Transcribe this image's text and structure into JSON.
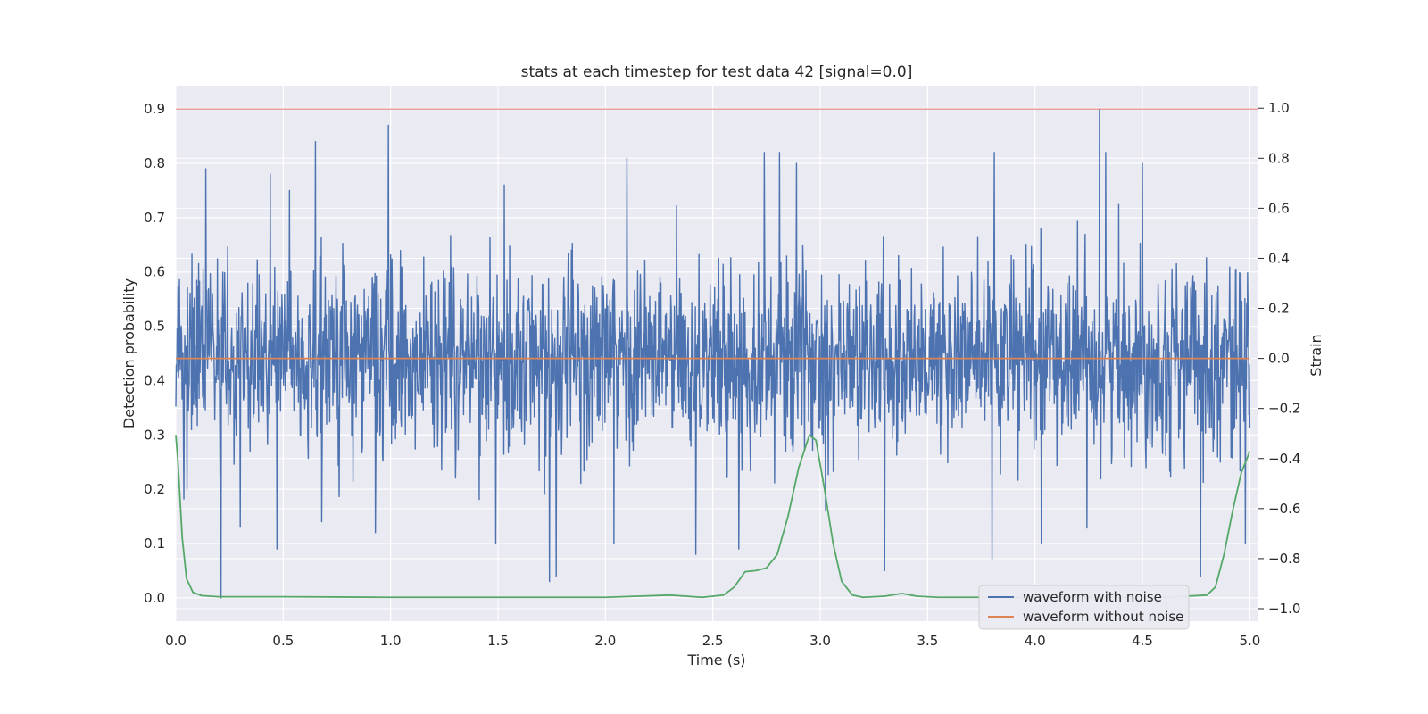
{
  "chart_data": {
    "type": "line",
    "title": "stats at each timestep for test data 42 [signal=0.0]",
    "xlabel": "Time (s)",
    "ylabel": "Detection probability",
    "y2label": "Strain",
    "xlim": [
      0.0,
      5.04
    ],
    "ylim": [
      -0.043,
      0.943
    ],
    "y2lim": [
      -1.05,
      1.09
    ],
    "xticks": [
      "0.0",
      "0.5",
      "1.0",
      "1.5",
      "2.0",
      "2.5",
      "3.0",
      "3.5",
      "4.0",
      "4.5",
      "5.0"
    ],
    "yticks": [
      "0.0",
      "0.1",
      "0.2",
      "0.3",
      "0.4",
      "0.5",
      "0.6",
      "0.7",
      "0.8",
      "0.9"
    ],
    "y2ticks": [
      "−1.0",
      "−0.8",
      "−0.6",
      "−0.4",
      "−0.2",
      "0.0",
      "0.2",
      "0.4",
      "0.6",
      "0.8",
      "1.0"
    ],
    "grid": true,
    "legend_position": "lower-right",
    "threshold": {
      "axis": "left",
      "value": 0.9,
      "color": "#e06c6c"
    },
    "series": [
      {
        "name": "waveform with noise",
        "axis": "left",
        "color": "#4c72b0",
        "kind": "noise",
        "center": 0.44,
        "stats": {
          "min": 0.0,
          "max": 0.9,
          "typical_low": 0.28,
          "typical_high": 0.62
        },
        "spikes_high": [
          [
            0.14,
            0.79
          ],
          [
            0.44,
            0.78
          ],
          [
            0.53,
            0.75
          ],
          [
            0.65,
            0.84
          ],
          [
            0.99,
            0.87
          ],
          [
            1.53,
            0.76
          ],
          [
            1.74,
            0.78
          ],
          [
            2.1,
            0.81
          ],
          [
            2.74,
            0.82
          ],
          [
            2.81,
            0.82
          ],
          [
            2.89,
            0.8
          ],
          [
            3.81,
            0.82
          ],
          [
            4.3,
            0.9
          ],
          [
            4.33,
            0.82
          ],
          [
            4.5,
            0.8
          ]
        ],
        "spikes_low": [
          [
            0.21,
            0.0
          ],
          [
            0.3,
            0.13
          ],
          [
            0.47,
            0.09
          ],
          [
            0.68,
            0.14
          ],
          [
            0.93,
            0.12
          ],
          [
            1.49,
            0.1
          ],
          [
            1.74,
            0.03
          ],
          [
            1.77,
            0.04
          ],
          [
            2.04,
            0.1
          ],
          [
            2.42,
            0.08
          ],
          [
            2.62,
            0.09
          ],
          [
            3.3,
            0.05
          ],
          [
            3.8,
            0.07
          ],
          [
            4.03,
            0.1
          ],
          [
            4.77,
            0.04
          ],
          [
            4.98,
            0.1
          ]
        ]
      },
      {
        "name": "waveform without noise",
        "axis": "right",
        "color": "#dd8452",
        "x": [
          0.0,
          5.0
        ],
        "y": [
          0.0,
          0.0
        ]
      },
      {
        "name": "",
        "axis": "left",
        "color": "#55a868",
        "x": [
          0.0,
          0.01,
          0.03,
          0.05,
          0.08,
          0.12,
          0.2,
          0.5,
          1.0,
          1.5,
          2.0,
          2.15,
          2.3,
          2.45,
          2.55,
          2.6,
          2.65,
          2.7,
          2.75,
          2.8,
          2.85,
          2.9,
          2.95,
          2.98,
          3.02,
          3.06,
          3.1,
          3.15,
          3.2,
          3.3,
          3.38,
          3.45,
          3.55,
          3.8,
          4.2,
          4.6,
          4.8,
          4.84,
          4.88,
          4.92,
          4.96,
          5.0
        ],
        "y": [
          0.3,
          0.25,
          0.11,
          0.035,
          0.01,
          0.004,
          0.002,
          0.002,
          0.001,
          0.001,
          0.001,
          0.003,
          0.005,
          0.001,
          0.005,
          0.02,
          0.048,
          0.05,
          0.055,
          0.08,
          0.15,
          0.24,
          0.3,
          0.29,
          0.2,
          0.1,
          0.03,
          0.005,
          0.001,
          0.003,
          0.008,
          0.003,
          0.001,
          0.001,
          0.001,
          0.001,
          0.005,
          0.02,
          0.08,
          0.16,
          0.23,
          0.27
        ]
      }
    ]
  }
}
